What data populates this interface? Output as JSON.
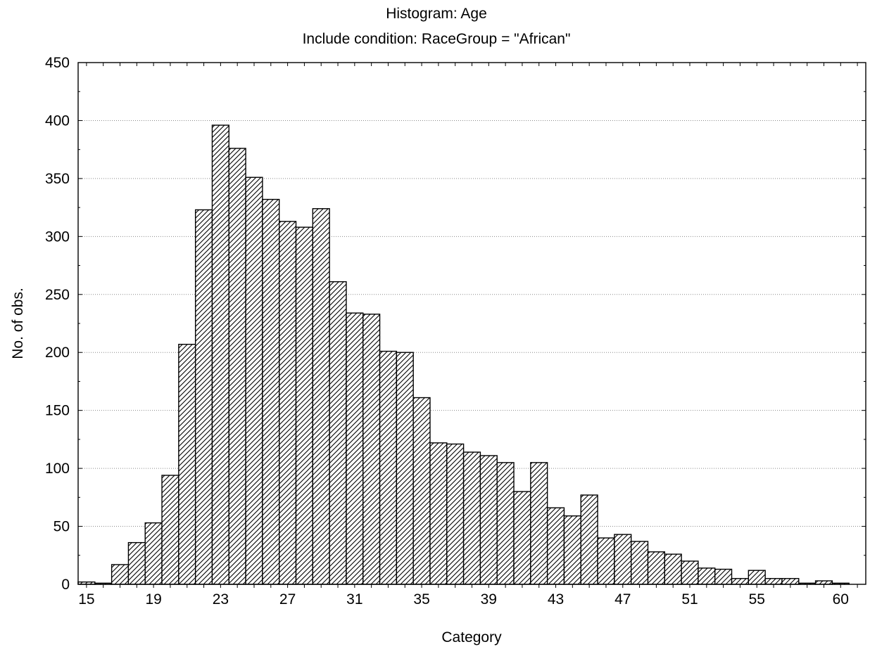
{
  "chart_data": {
    "type": "bar",
    "title": "Histogram: Age",
    "subtitle": "Include condition: RaceGroup = \"African\"",
    "xlabel": "Category",
    "ylabel": "No. of obs.",
    "ylim": [
      0,
      450
    ],
    "yticks": [
      0,
      50,
      100,
      150,
      200,
      250,
      300,
      350,
      400,
      450
    ],
    "xtick_labels": [
      "15",
      "19",
      "23",
      "27",
      "31",
      "35",
      "39",
      "43",
      "47",
      "51",
      "55",
      "60"
    ],
    "categories": [
      "15",
      "16",
      "17",
      "18",
      "19",
      "20",
      "21",
      "22",
      "23",
      "24",
      "25",
      "26",
      "27",
      "28",
      "29",
      "30",
      "31",
      "32",
      "33",
      "34",
      "35",
      "36",
      "37",
      "38",
      "39",
      "40",
      "41",
      "42",
      "43",
      "44",
      "45",
      "46",
      "47",
      "48",
      "49",
      "50",
      "51",
      "52",
      "53",
      "54",
      "55",
      "56",
      "57",
      "58",
      "59",
      "60",
      "61"
    ],
    "values": [
      2,
      1,
      17,
      36,
      53,
      94,
      207,
      323,
      396,
      376,
      351,
      332,
      313,
      308,
      324,
      261,
      234,
      233,
      201,
      200,
      161,
      122,
      121,
      114,
      111,
      105,
      80,
      105,
      66,
      59,
      77,
      40,
      43,
      37,
      28,
      26,
      20,
      14,
      13,
      5,
      12,
      5,
      5,
      1,
      3,
      1,
      0
    ],
    "grid": "horizontal dotted",
    "bar_pattern": "diagonal hatch",
    "bar_color": "#ffffff",
    "line_color": "#000000"
  }
}
